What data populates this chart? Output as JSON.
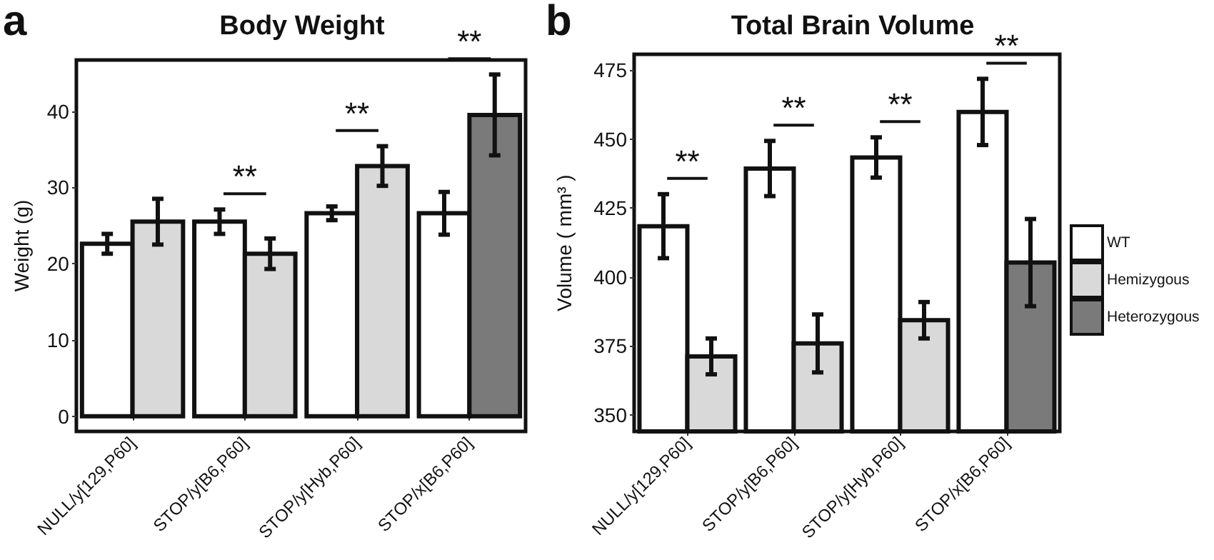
{
  "chart_data": [
    {
      "type": "bar",
      "title": "Body Weight",
      "ylabel": "Weight (g)",
      "categories": [
        "NULL/y[129,P60]",
        "STOP/y[B6,P60]",
        "STOP/y[Hyb,P60]",
        "STOP/x[B6,P60]"
      ],
      "series": [
        {
          "color": "#ffffff",
          "values": [
            22.6,
            25.5,
            26.6,
            26.6
          ],
          "errors": [
            1.3,
            1.6,
            0.9,
            2.8
          ]
        },
        {
          "color": "#d9d9d9",
          "values": [
            25.5,
            21.3,
            32.8,
            null
          ],
          "errors": [
            3.0,
            2.0,
            2.6,
            null
          ]
        },
        {
          "color": "#7a7a7a",
          "values": [
            null,
            null,
            null,
            39.5
          ],
          "errors": [
            null,
            null,
            null,
            5.3
          ]
        }
      ],
      "ylim": [
        -2,
        46.7
      ],
      "yticks": [
        0,
        10,
        20,
        30,
        40
      ],
      "grid": false,
      "legend": false,
      "annotations": [
        "a",
        "**",
        "**",
        "**"
      ]
    },
    {
      "type": "bar",
      "title": "Total Brain Volume",
      "ylabel": "Volume ( mm³ )",
      "categories": [
        "NULL/y[129,P60]",
        "STOP/y[B6,P60]",
        "STOP/y[Hyb,P60]",
        "STOP/x[B6,P60]"
      ],
      "series": [
        {
          "name": "WT",
          "color": "#ffffff",
          "values": [
            418.4,
            439.3,
            443.3,
            459.8
          ],
          "errors": [
            11.6,
            10,
            7.3,
            12
          ]
        },
        {
          "name": "Hemizygous",
          "color": "#d9d9d9",
          "values": [
            371.2,
            375.9,
            384.3,
            null
          ],
          "errors": [
            6.5,
            10.5,
            6.6,
            null
          ]
        },
        {
          "name": "Heterozygous",
          "color": "#7a7a7a",
          "values": [
            null,
            null,
            null,
            405.2
          ],
          "errors": [
            null,
            null,
            null,
            15.8
          ]
        }
      ],
      "ylim": [
        344,
        480.7
      ],
      "yticks": [
        350,
        375,
        400,
        425,
        450,
        475
      ],
      "grid": false,
      "legend": "right",
      "annotations": [
        "b",
        "**",
        "**",
        "**",
        "**"
      ]
    }
  ]
}
